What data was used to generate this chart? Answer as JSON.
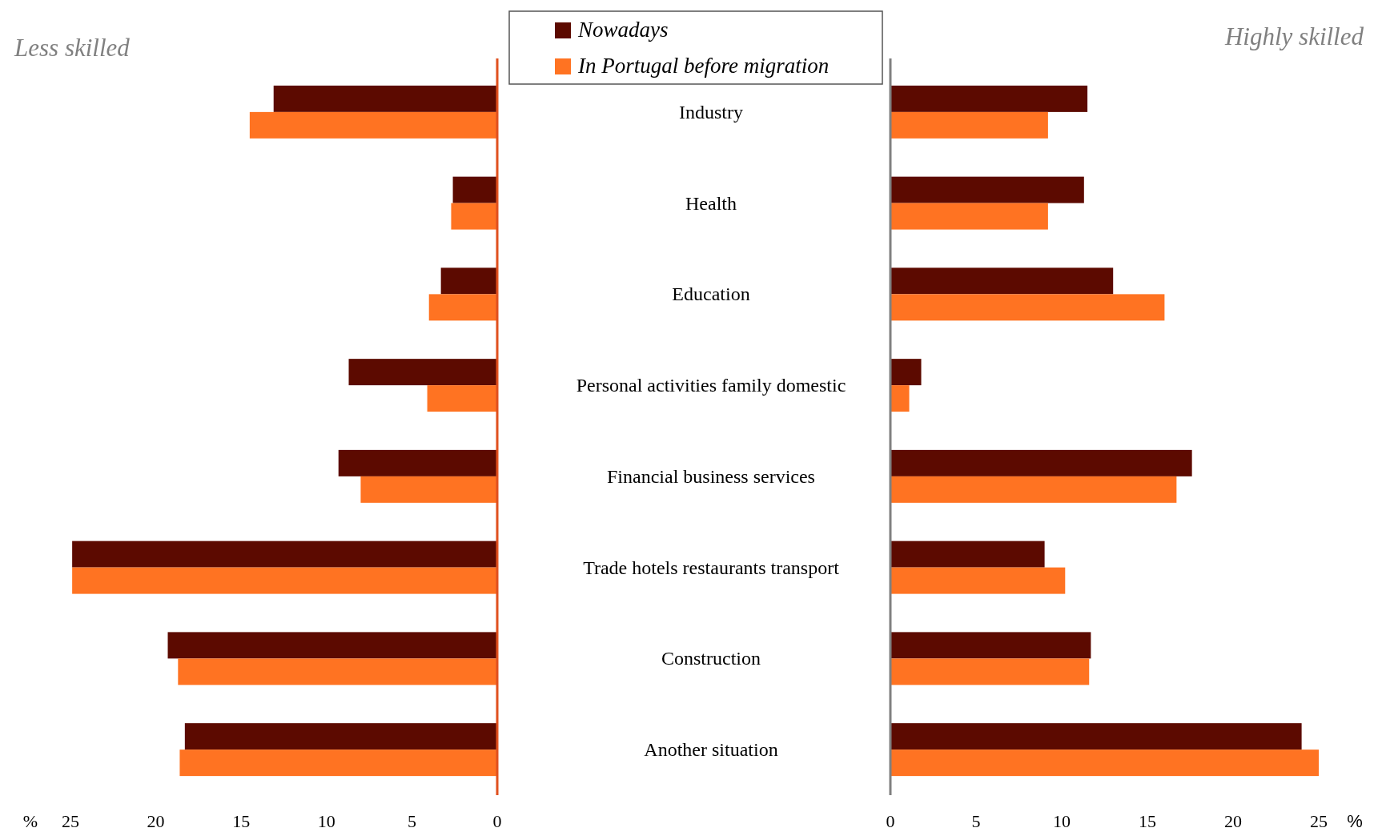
{
  "chart_data": [
    {
      "type": "bar",
      "orientation": "horizontal",
      "title": "Less skilled",
      "xlabel": "%",
      "categories": [
        "Industry",
        "Health",
        "Education",
        "Personal activities family domestic",
        "Financial business services",
        "Trade hotels restaurants transport",
        "Construction",
        "Another situation"
      ],
      "series": [
        {
          "name": "Nowadays",
          "color": "#5c0a00",
          "values": [
            13.1,
            2.6,
            3.3,
            8.7,
            9.3,
            24.9,
            19.3,
            18.3
          ]
        },
        {
          "name": "In Portugal before migration",
          "color": "#ff7322",
          "values": [
            14.5,
            2.7,
            4.0,
            4.1,
            8.0,
            24.9,
            18.7,
            18.6
          ]
        }
      ],
      "xlim": [
        25,
        0
      ],
      "xticks": [
        25,
        20,
        15,
        10,
        5,
        0
      ],
      "grid": false,
      "legend": "top right"
    },
    {
      "type": "bar",
      "orientation": "horizontal",
      "title": "Highly skilled",
      "xlabel": "%",
      "categories": [
        null,
        null,
        null,
        null,
        null,
        null,
        null,
        null
      ],
      "series": [
        {
          "color": "#5c0a00",
          "values": [
            11.5,
            11.3,
            13.0,
            1.8,
            17.6,
            9.0,
            11.7,
            24.0
          ]
        },
        {
          "color": "#ff7322",
          "values": [
            9.2,
            9.2,
            16.0,
            1.1,
            16.7,
            10.2,
            11.6,
            25.0
          ]
        }
      ],
      "xlim": [
        0,
        25
      ],
      "xticks": [
        0,
        5,
        10,
        15,
        20,
        25
      ],
      "grid": false
    }
  ]
}
